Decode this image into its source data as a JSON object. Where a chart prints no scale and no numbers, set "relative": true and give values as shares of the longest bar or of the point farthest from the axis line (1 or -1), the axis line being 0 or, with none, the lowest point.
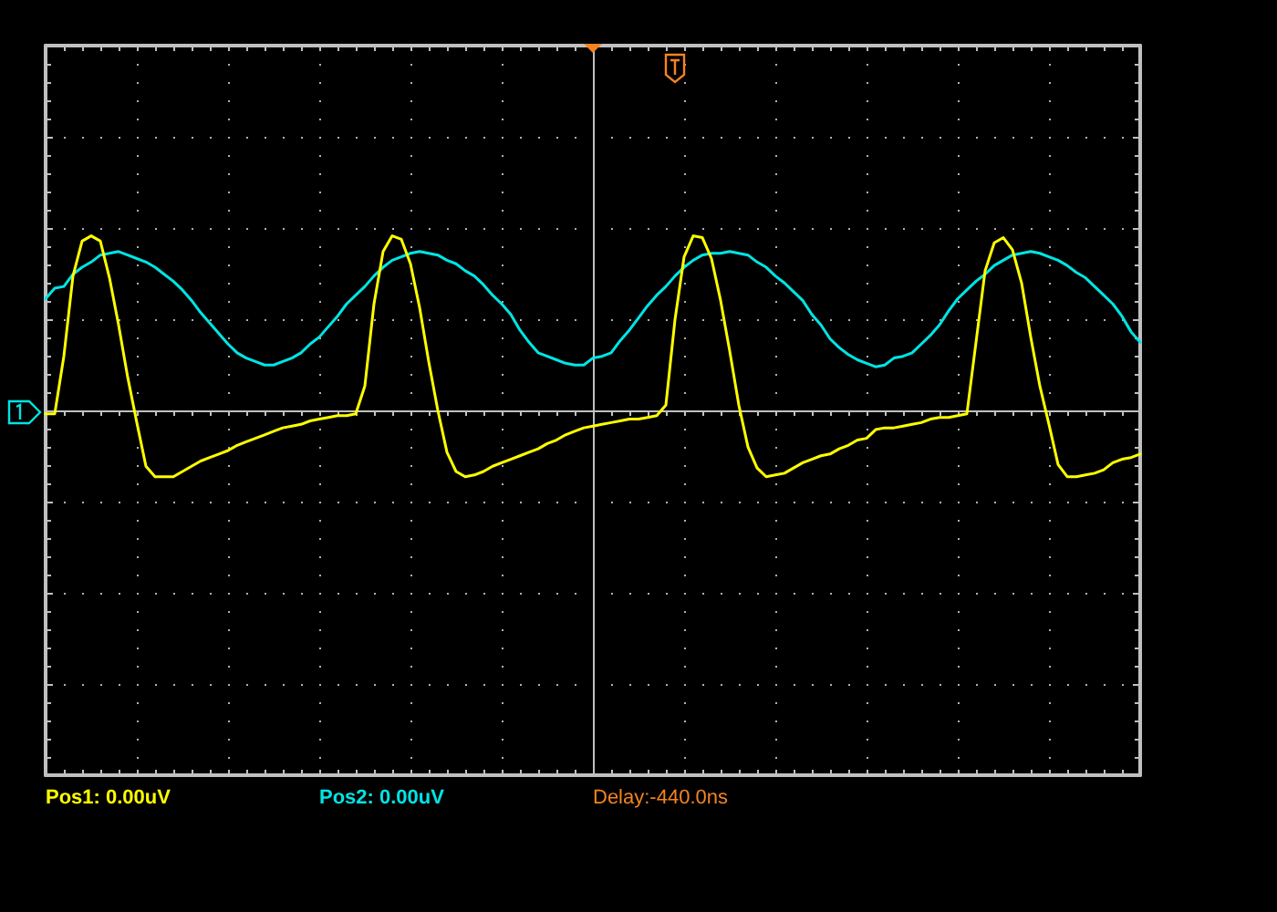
{
  "chart_data": {
    "type": "line",
    "relative": true,
    "grid": true,
    "categories": [
      null,
      null,
      null,
      null,
      null,
      null,
      null,
      null,
      null,
      null,
      null,
      null,
      null,
      null,
      null,
      null,
      null,
      null,
      null,
      null,
      null,
      null,
      null,
      null,
      null,
      null,
      null,
      null,
      null,
      null,
      null,
      null,
      null,
      null,
      null,
      null,
      null,
      null,
      null,
      null,
      null,
      null,
      null,
      null,
      null,
      null,
      null,
      null,
      null,
      null,
      null,
      null,
      null,
      null,
      null,
      null,
      null,
      null,
      null,
      null,
      null,
      null,
      null,
      null,
      null,
      null,
      null,
      null,
      null,
      null,
      null,
      null,
      null,
      null,
      null,
      null,
      null,
      null,
      null,
      null,
      null,
      null,
      null,
      null,
      null,
      null,
      null,
      null,
      null,
      null,
      null,
      null,
      null,
      null,
      null,
      null,
      null,
      null,
      null,
      null,
      null,
      null,
      null,
      null,
      null,
      null,
      null,
      null,
      null,
      null,
      null,
      null,
      null,
      null,
      null,
      null,
      null,
      null,
      null,
      null,
      null
    ],
    "series": [
      {
        "color": "#ffff00",
        "values": [
          -0.02,
          -0.02,
          0.31,
          0.77,
          0.97,
          1,
          0.97,
          0.76,
          0.49,
          0.19,
          -0.07,
          -0.32,
          -0.38,
          -0.38,
          -0.38,
          -0.35,
          -0.32,
          -0.29,
          -0.27,
          -0.25,
          -0.23,
          -0.2,
          -0.18,
          -0.16,
          -0.14,
          -0.12,
          -0.1,
          -0.09,
          -0.08,
          -0.06,
          -0.05,
          -0.04,
          -0.03,
          -0.03,
          -0.02,
          0.14,
          0.61,
          0.91,
          1,
          0.98,
          0.84,
          0.59,
          0.28,
          0,
          -0.24,
          -0.35,
          -0.38,
          -0.37,
          -0.35,
          -0.32,
          -0.3,
          -0.28,
          -0.26,
          -0.24,
          -0.22,
          -0.19,
          -0.17,
          -0.14,
          -0.12,
          -0.1,
          -0.09,
          -0.08,
          -0.07,
          -0.06,
          -0.05,
          -0.05,
          -0.04,
          -0.03,
          0.03,
          0.52,
          0.88,
          1,
          0.99,
          0.87,
          0.63,
          0.34,
          0.03,
          -0.21,
          -0.33,
          -0.38,
          -0.37,
          -0.36,
          -0.33,
          -0.3,
          -0.28,
          -0.26,
          -0.25,
          -0.22,
          -0.2,
          -0.17,
          -0.16,
          -0.11,
          -0.1,
          -0.1,
          -0.09,
          -0.08,
          -0.07,
          -0.05,
          -0.04,
          -0.04,
          -0.03,
          -0.02,
          0.39,
          0.8,
          0.96,
          0.99,
          0.92,
          0.73,
          0.42,
          0.14,
          -0.08,
          -0.31,
          -0.38,
          -0.38,
          -0.37,
          -0.36,
          -0.34,
          -0.3,
          -0.28,
          -0.27,
          -0.25
        ]
      },
      {
        "color": "#00e5e5",
        "values": [
          0.64,
          0.7,
          0.71,
          0.78,
          0.82,
          0.85,
          0.89,
          0.9,
          0.91,
          0.89,
          0.87,
          0.85,
          0.82,
          0.78,
          0.74,
          0.69,
          0.63,
          0.56,
          0.5,
          0.44,
          0.38,
          0.33,
          0.3,
          0.28,
          0.26,
          0.26,
          0.28,
          0.3,
          0.33,
          0.38,
          0.42,
          0.48,
          0.54,
          0.61,
          0.66,
          0.71,
          0.77,
          0.82,
          0.86,
          0.88,
          0.9,
          0.91,
          0.9,
          0.89,
          0.86,
          0.84,
          0.8,
          0.77,
          0.72,
          0.66,
          0.61,
          0.55,
          0.46,
          0.39,
          0.33,
          0.31,
          0.29,
          0.27,
          0.26,
          0.26,
          0.3,
          0.31,
          0.33,
          0.4,
          0.46,
          0.53,
          0.6,
          0.66,
          0.71,
          0.77,
          0.82,
          0.86,
          0.89,
          0.9,
          0.9,
          0.91,
          0.9,
          0.89,
          0.85,
          0.82,
          0.77,
          0.73,
          0.68,
          0.63,
          0.55,
          0.49,
          0.41,
          0.36,
          0.32,
          0.29,
          0.27,
          0.25,
          0.26,
          0.3,
          0.31,
          0.33,
          0.38,
          0.43,
          0.49,
          0.57,
          0.64,
          0.69,
          0.74,
          0.78,
          0.83,
          0.86,
          0.89,
          0.9,
          0.91,
          0.9,
          0.88,
          0.86,
          0.83,
          0.79,
          0.76,
          0.71,
          0.66,
          0.61,
          0.54,
          0.45,
          0.39
        ]
      }
    ],
    "annotations": [
      "Pos1: 0.00uV",
      "Pos2: 0.00uV",
      "Delay:-440.0ns"
    ]
  }
}
